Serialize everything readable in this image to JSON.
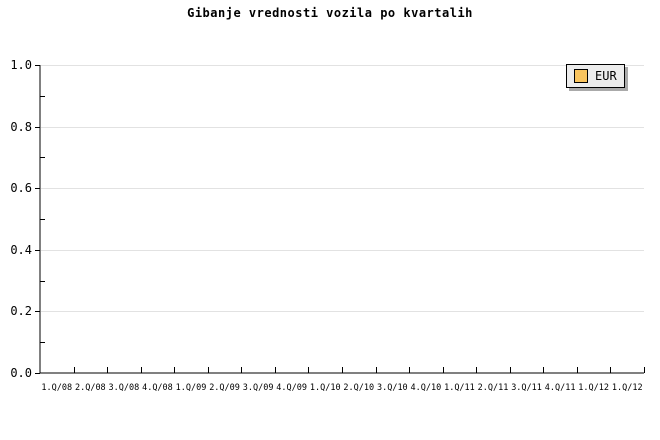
{
  "title": "Gibanje vrednosti vozila po kvartalih",
  "legend": {
    "label": "EUR",
    "swatch_color": "#F9C45E"
  },
  "colors": {
    "background": "#FFFFFF",
    "axis": "#000000",
    "grid": "#E2E2E2",
    "text": "#000000",
    "legend_bg": "#ECECEC",
    "legend_shadow": "#AAAAAA"
  },
  "chart_data": {
    "type": "line",
    "title": "Gibanje vrednosti vozila po kvartalih",
    "categories": [
      "1.Q/08",
      "2.Q/08",
      "3.Q/08",
      "4.Q/08",
      "1.Q/09",
      "2.Q/09",
      "3.Q/09",
      "4.Q/09",
      "1.Q/10",
      "2.Q/10",
      "3.Q/10",
      "4.Q/10",
      "1.Q/11",
      "2.Q/11",
      "3.Q/11",
      "4.Q/11",
      "1.Q/12",
      "1.Q/12"
    ],
    "series": [
      {
        "name": "EUR",
        "values": []
      }
    ],
    "xlabel": "",
    "ylabel": "",
    "ylim": [
      0.0,
      1.0
    ],
    "yticks": [
      0.0,
      0.2,
      0.4,
      0.6,
      0.8,
      1.0
    ],
    "ytick_labels": [
      "0.0",
      "0.2",
      "0.4",
      "0.6",
      "0.8",
      "1.0"
    ],
    "minor_yticks": [
      0.1,
      0.3,
      0.5,
      0.7,
      0.9
    ],
    "grid": true,
    "legend_position": "top-right"
  }
}
